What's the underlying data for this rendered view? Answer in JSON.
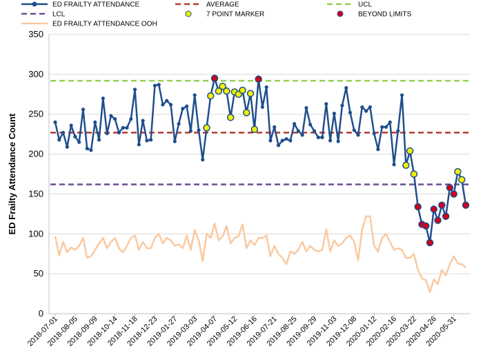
{
  "chart_data": {
    "type": "line",
    "title": "",
    "xlabel": "",
    "ylabel": "ED Frailty Attendance Count",
    "ylim": [
      0,
      350
    ],
    "yticks": [
      0,
      50,
      100,
      150,
      200,
      250,
      300,
      350
    ],
    "x_tick_labels": [
      "2018-07-01",
      "2018-08-05",
      "2018-09-09",
      "2018-10-14",
      "2018-11-18",
      "2018-12-23",
      "2019-01-27",
      "2019-03-03",
      "2019-04-07",
      "2019-05-12",
      "2019-06-16",
      "2019-07-21",
      "2019-08-25",
      "2019-09-29",
      "2019-11-03",
      "2019-12-08",
      "2020-01-12",
      "2020-02-16",
      "2020-03-22",
      "2020-04-26",
      "2020-05-31"
    ],
    "grid": "horizontal",
    "legend_position": "top",
    "average": 227,
    "ucl": 292,
    "lcl": 162,
    "series": [
      {
        "name": "ED FRAILTY ATTENDANCE",
        "color": "#1f4e8c",
        "values": [
          240,
          218,
          227,
          209,
          236,
          222,
          215,
          256,
          207,
          205,
          240,
          218,
          270,
          226,
          248,
          244,
          227,
          233,
          233,
          244,
          281,
          212,
          242,
          217,
          218,
          286,
          287,
          262,
          267,
          262,
          216,
          238,
          257,
          260,
          229,
          274,
          230,
          193,
          233,
          273,
          295,
          279,
          285,
          279,
          246,
          278,
          275,
          280,
          252,
          276,
          231,
          294,
          259,
          284,
          217,
          234,
          211,
          217,
          219,
          217,
          238,
          229,
          224,
          258,
          237,
          229,
          221,
          221,
          263,
          217,
          251,
          216,
          261,
          283,
          252,
          230,
          224,
          259,
          254,
          259,
          226,
          206,
          234,
          234,
          240,
          187,
          229,
          274,
          186,
          204,
          175,
          134,
          112,
          110,
          89,
          131,
          117,
          136,
          122,
          158,
          150,
          178,
          168,
          136
        ]
      },
      {
        "name": "ED FRAILTY ATTENDANCE OOH",
        "color": "#f9c9a0",
        "values": [
          97,
          73,
          90,
          77,
          83,
          80,
          85,
          95,
          70,
          72,
          80,
          88,
          95,
          82,
          90,
          95,
          82,
          77,
          85,
          95,
          98,
          80,
          90,
          82,
          82,
          95,
          100,
          88,
          95,
          92,
          85,
          87,
          82,
          98,
          80,
          105,
          92,
          66,
          100,
          95,
          113,
          92,
          97,
          110,
          88,
          95,
          97,
          112,
          82,
          92,
          86,
          95,
          95,
          98,
          72,
          85,
          75,
          70,
          62,
          78,
          75,
          80,
          90,
          78,
          85,
          80,
          78,
          80,
          106,
          78,
          92,
          85,
          88,
          95,
          98,
          90,
          67,
          105,
          122,
          122,
          85,
          78,
          95,
          100,
          90,
          80,
          82,
          80,
          70,
          70,
          75,
          55,
          44,
          42,
          27,
          43,
          37,
          55,
          48,
          62,
          72,
          63,
          62,
          58
        ]
      },
      {
        "name": "AVERAGE",
        "color": "#b03a2e",
        "line_style": "dashed"
      },
      {
        "name": "UCL",
        "color": "#92d050",
        "line_style": "dashed"
      },
      {
        "name": "LCL",
        "color": "#6a4c93",
        "line_style": "dashed"
      },
      {
        "name": "7 POINT MARKER",
        "color": "#f2f200",
        "marker": "circle"
      },
      {
        "name": "BEYOND LIMITS",
        "color": "#d0021b",
        "marker": "circle"
      }
    ],
    "seven_point_marker_indices": [
      38,
      39,
      41,
      42,
      43,
      44,
      45,
      46,
      47,
      48,
      49,
      50,
      88,
      89,
      90,
      101,
      102
    ],
    "beyond_limits_indices": [
      40,
      51,
      91,
      92,
      93,
      94,
      95,
      96,
      97,
      98,
      99,
      100,
      103
    ]
  }
}
